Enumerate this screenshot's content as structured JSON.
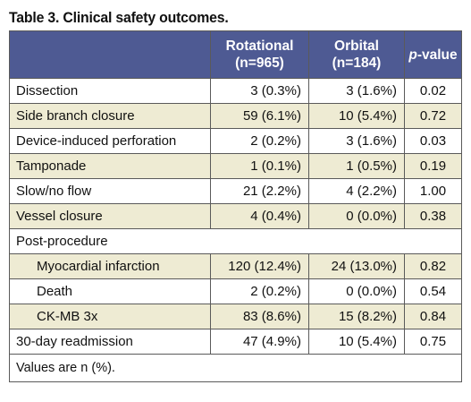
{
  "title": "Table 3. Clinical safety outcomes.",
  "header": {
    "col1_line1": "Rotational",
    "col1_line2": "(n=965)",
    "col2_line1": "Orbital",
    "col2_line2": "(n=184)",
    "col3_italic": "p",
    "col3_rest": "-value"
  },
  "rows": [
    {
      "label": "Dissection",
      "rot": "3 (0.3%)",
      "orb": "3 (1.6%)",
      "p": "0.02"
    },
    {
      "label": "Side branch closure",
      "rot": "59 (6.1%)",
      "orb": "10 (5.4%)",
      "p": "0.72"
    },
    {
      "label": "Device-induced perforation",
      "rot": "2 (0.2%)",
      "orb": "3 (1.6%)",
      "p": "0.03"
    },
    {
      "label": "Tamponade",
      "rot": "1 (0.1%)",
      "orb": "1 (0.5%)",
      "p": "0.19"
    },
    {
      "label": "Slow/no flow",
      "rot": "21 (2.2%)",
      "orb": "4 (2.2%)",
      "p": "1.00"
    },
    {
      "label": "Vessel closure",
      "rot": "4 (0.4%)",
      "orb": "0 (0.0%)",
      "p": "0.38"
    }
  ],
  "section_label": "Post-procedure",
  "sub_rows": [
    {
      "label": "Myocardial infarction",
      "rot": "120 (12.4%)",
      "orb": "24 (13.0%)",
      "p": "0.82"
    },
    {
      "label": "Death",
      "rot": "2 (0.2%)",
      "orb": "0 (0.0%)",
      "p": "0.54"
    },
    {
      "label": "CK-MB 3x",
      "rot": "83 (8.6%)",
      "orb": "15 (8.2%)",
      "p": "0.84"
    }
  ],
  "final_row": {
    "label": "30-day readmission",
    "rot": "47 (4.9%)",
    "orb": "10 (5.4%)",
    "p": "0.75"
  },
  "footnote": "Values are n (%).",
  "colors": {
    "header_bg": "#4e5a93",
    "shade_bg": "#eeebd3",
    "border": "#5a5a5a"
  }
}
